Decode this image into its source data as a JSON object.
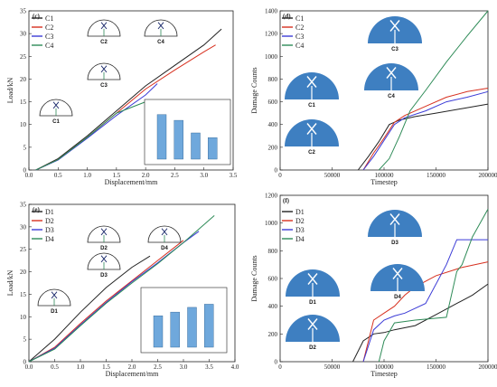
{
  "colors": {
    "s1": "#222222",
    "s2": "#d7301f",
    "s3": "#3b3bd6",
    "s4": "#2e8b57",
    "bar": "#6fa8dc",
    "disk": "#3e7fc1"
  },
  "chart_data": [
    {
      "panel": "(c)",
      "type": "line",
      "xlabel": "Displacement/mm",
      "ylabel": "Load/kN",
      "xlim": [
        0,
        3.5
      ],
      "ylim": [
        0,
        35
      ],
      "xticks": [
        "0.0",
        "0.5",
        "1.0",
        "1.5",
        "2.0",
        "2.5",
        "3.0",
        "3.5"
      ],
      "yticks": [
        "0",
        "5",
        "10",
        "15",
        "20",
        "25",
        "30",
        "35"
      ],
      "legend": [
        "C1",
        "C2",
        "C3",
        "C4"
      ],
      "series": [
        {
          "name": "C1",
          "x": [
            0.12,
            0.5,
            1.0,
            1.5,
            2.0,
            2.5,
            3.0,
            3.3
          ],
          "y": [
            0,
            2.5,
            7.5,
            13,
            18.5,
            23,
            27.5,
            31
          ]
        },
        {
          "name": "C2",
          "x": [
            0.12,
            0.5,
            1.0,
            1.5,
            2.0,
            2.5,
            3.0,
            3.2
          ],
          "y": [
            0,
            2.3,
            7.2,
            12.5,
            17.8,
            22,
            26,
            27.5
          ]
        },
        {
          "name": "C3",
          "x": [
            0.12,
            0.5,
            1.0,
            1.5,
            2.0,
            2.2
          ],
          "y": [
            0,
            2.2,
            7,
            12,
            16.5,
            19
          ]
        },
        {
          "name": "C4",
          "x": [
            0.12,
            0.5,
            1.0,
            1.5,
            2.0,
            2.05,
            2.08
          ],
          "y": [
            0,
            2.3,
            7.2,
            12.5,
            15,
            15.2,
            13
          ]
        }
      ],
      "schematics": [
        "C1",
        "C2",
        "C3",
        "C4"
      ],
      "inset_values": [
        0.85,
        0.74,
        0.5,
        0.41
      ]
    },
    {
      "panel": "(d)",
      "type": "line",
      "xlabel": "Timestep",
      "ylabel": "Damage Counts",
      "xlim": [
        0,
        200000
      ],
      "ylim": [
        0,
        1400
      ],
      "xticks": [
        "0",
        "50000",
        "100000",
        "150000",
        "200000"
      ],
      "yticks": [
        "0",
        "200",
        "400",
        "600",
        "800",
        "1000",
        "1200",
        "1400"
      ],
      "legend": [
        "C1",
        "C2",
        "C3",
        "C4"
      ],
      "series": [
        {
          "name": "C1",
          "x": [
            75000,
            85000,
            95000,
            105000,
            115000,
            130000,
            150000,
            175000,
            200000
          ],
          "y": [
            0,
            120,
            250,
            400,
            440,
            470,
            500,
            540,
            580
          ]
        },
        {
          "name": "C2",
          "x": [
            80000,
            90000,
            100000,
            110000,
            120000,
            140000,
            160000,
            180000,
            200000
          ],
          "y": [
            0,
            150,
            280,
            420,
            480,
            560,
            640,
            690,
            720
          ]
        },
        {
          "name": "C3",
          "x": [
            80000,
            90000,
            100000,
            110000,
            120000,
            140000,
            160000,
            180000,
            200000
          ],
          "y": [
            0,
            120,
            260,
            400,
            460,
            520,
            600,
            640,
            690
          ]
        },
        {
          "name": "C4",
          "x": [
            95000,
            105000,
            115000,
            125000,
            140000,
            160000,
            180000,
            200000
          ],
          "y": [
            0,
            100,
            300,
            520,
            700,
            950,
            1180,
            1400
          ]
        }
      ],
      "schematics": [
        "C1",
        "C2",
        "C3",
        "C4"
      ]
    },
    {
      "panel": "(e)",
      "type": "line",
      "xlabel": "Displacement/mm",
      "ylabel": "Load/kN",
      "xlim": [
        0,
        4.0
      ],
      "ylim": [
        0,
        35
      ],
      "xticks": [
        "0.0",
        "0.5",
        "1.0",
        "1.5",
        "2.0",
        "2.5",
        "3.0",
        "3.5",
        "4.0"
      ],
      "yticks": [
        "0",
        "5",
        "10",
        "15",
        "20",
        "25",
        "30",
        "35"
      ],
      "legend": [
        "D1",
        "D2",
        "D3",
        "D4"
      ],
      "series": [
        {
          "name": "D1",
          "x": [
            0,
            0.5,
            1.0,
            1.5,
            2.0,
            2.35
          ],
          "y": [
            0,
            5,
            11,
            16.5,
            21,
            23.5
          ]
        },
        {
          "name": "D2",
          "x": [
            0,
            0.5,
            1.0,
            1.5,
            2.0,
            2.5,
            3.0
          ],
          "y": [
            0,
            3.2,
            8.5,
            13.5,
            18,
            22.5,
            27
          ]
        },
        {
          "name": "D3",
          "x": [
            0,
            0.5,
            1.0,
            1.5,
            2.0,
            2.5,
            3.0,
            3.3
          ],
          "y": [
            0,
            3,
            8.2,
            13.2,
            17.8,
            22,
            26.5,
            29
          ]
        },
        {
          "name": "D4",
          "x": [
            0,
            0.5,
            1.0,
            1.5,
            2.0,
            2.5,
            3.0,
            3.6
          ],
          "y": [
            0,
            2.8,
            8,
            13,
            17.5,
            21.8,
            26.5,
            32.5
          ]
        }
      ],
      "schematics": [
        "D1",
        "D2",
        "D3",
        "D4"
      ],
      "inset_values": [
        0.6,
        0.67,
        0.76,
        0.82
      ]
    },
    {
      "panel": "(f)",
      "type": "line",
      "xlabel": "Timestep",
      "ylabel": "Damage Counts",
      "xlim": [
        0,
        200000
      ],
      "ylim": [
        0,
        1200
      ],
      "xticks": [
        "0",
        "50000",
        "100000",
        "150000",
        "200000"
      ],
      "yticks": [
        "0",
        "200",
        "400",
        "600",
        "800",
        "1000",
        "1200"
      ],
      "legend": [
        "D1",
        "D2",
        "D3",
        "D4"
      ],
      "series": [
        {
          "name": "D1",
          "x": [
            70000,
            80000,
            90000,
            100000,
            110000,
            130000,
            150000,
            170000,
            185000,
            200000
          ],
          "y": [
            0,
            150,
            200,
            210,
            230,
            260,
            340,
            420,
            480,
            560
          ]
        },
        {
          "name": "D2",
          "x": [
            80000,
            90000,
            100000,
            110000,
            120000,
            130000,
            150000,
            175000,
            200000
          ],
          "y": [
            0,
            300,
            350,
            400,
            480,
            540,
            620,
            680,
            720
          ]
        },
        {
          "name": "D3",
          "x": [
            80000,
            90000,
            100000,
            110000,
            120000,
            140000,
            160000,
            170000,
            200000
          ],
          "y": [
            0,
            230,
            300,
            330,
            350,
            420,
            700,
            880,
            880
          ]
        },
        {
          "name": "D4",
          "x": [
            95000,
            100000,
            110000,
            130000,
            160000,
            170000,
            175000,
            185000,
            200000
          ],
          "y": [
            0,
            150,
            280,
            300,
            320,
            650,
            700,
            900,
            1100
          ]
        }
      ],
      "schematics": [
        "D1",
        "D2",
        "D3",
        "D4"
      ]
    }
  ]
}
